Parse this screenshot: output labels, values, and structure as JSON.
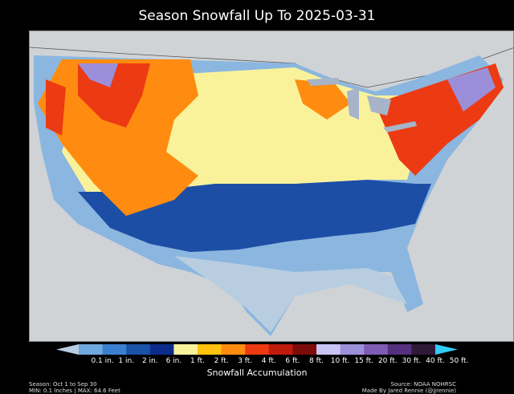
{
  "title": "Season Snowfall Up To 2025-03-31",
  "colorbar": {
    "title": "Snowfall Accumulation",
    "colors": [
      "#b8cde0",
      "#6fa8dc",
      "#3a80cf",
      "#1a52a8",
      "#0c2c8c",
      "#f9f29b",
      "#ffc20e",
      "#ff8c10",
      "#ec3a12",
      "#bf1a0c",
      "#7d0c08",
      "#cac4f4",
      "#9c8fda",
      "#7e5cb4",
      "#55307e",
      "#301838",
      "#33ccf5"
    ],
    "labels": [
      "0.1 in.",
      "1 in.",
      "2 in.",
      "6 in.",
      "1 ft.",
      "2 ft.",
      "3 ft.",
      "4 ft.",
      "6 ft.",
      "8 ft.",
      "10 ft.",
      "15 ft.",
      "20 ft.",
      "30 ft.",
      "40 ft.",
      "50 ft."
    ]
  },
  "footer": {
    "season": "Season: Oct 1 to Sep 30",
    "minmax": "MIN: 0.1 Inches | MAX: 64.6 Feet",
    "source": "Source: NOAA NOHRSC",
    "credit": "Made By Jared Rennie (@jjrennie)"
  }
}
